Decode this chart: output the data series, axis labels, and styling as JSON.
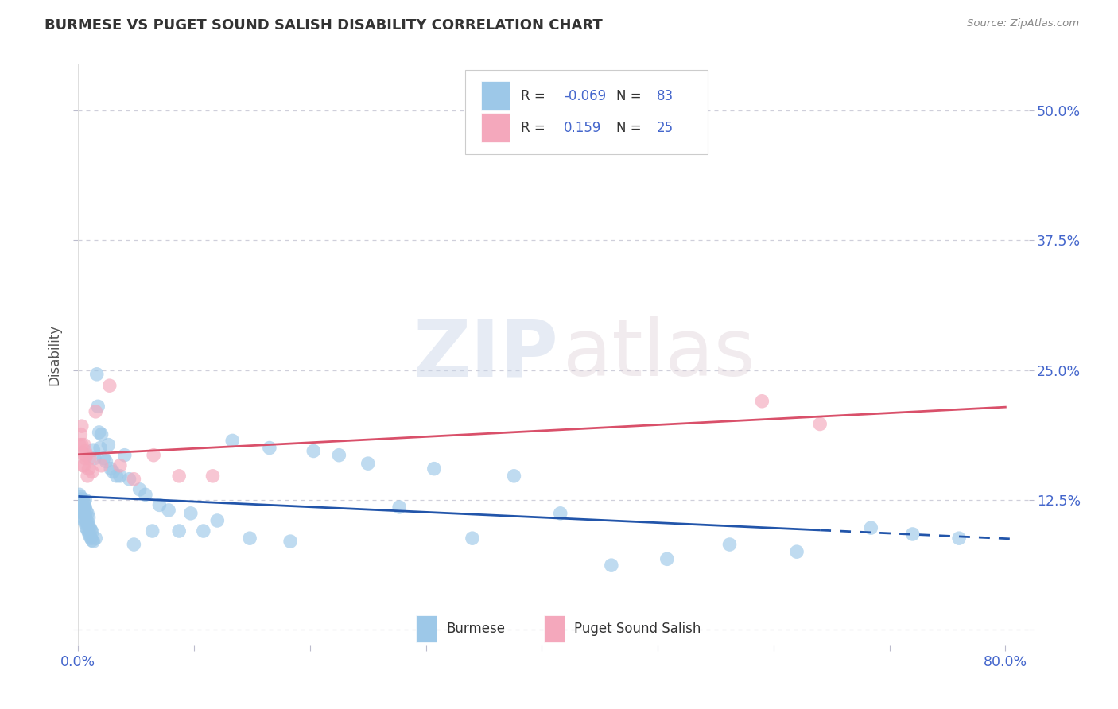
{
  "title": "BURMESE VS PUGET SOUND SALISH DISABILITY CORRELATION CHART",
  "source": "Source: ZipAtlas.com",
  "burmese_color": "#9DC8E8",
  "salish_color": "#F4A8BC",
  "trend_blue": "#2255AA",
  "trend_pink": "#D9506A",
  "burmese_R": -0.069,
  "burmese_N": 83,
  "salish_R": 0.159,
  "salish_N": 25,
  "watermark_zip": "ZIP",
  "watermark_atlas": "atlas",
  "xlim": [
    0.0,
    0.82
  ],
  "ylim": [
    -0.015,
    0.545
  ],
  "yticks": [
    0.0,
    0.125,
    0.25,
    0.375,
    0.5
  ],
  "xticks": [
    0.0,
    0.1,
    0.2,
    0.3,
    0.4,
    0.5,
    0.6,
    0.7,
    0.8
  ],
  "burmese_x": [
    0.001,
    0.001,
    0.002,
    0.002,
    0.002,
    0.003,
    0.003,
    0.003,
    0.003,
    0.004,
    0.004,
    0.004,
    0.004,
    0.005,
    0.005,
    0.005,
    0.005,
    0.006,
    0.006,
    0.006,
    0.006,
    0.007,
    0.007,
    0.007,
    0.008,
    0.008,
    0.008,
    0.009,
    0.009,
    0.009,
    0.01,
    0.01,
    0.011,
    0.011,
    0.012,
    0.012,
    0.013,
    0.013,
    0.014,
    0.015,
    0.016,
    0.017,
    0.018,
    0.019,
    0.02,
    0.022,
    0.024,
    0.026,
    0.028,
    0.03,
    0.033,
    0.036,
    0.04,
    0.044,
    0.048,
    0.053,
    0.058,
    0.064,
    0.07,
    0.078,
    0.087,
    0.097,
    0.108,
    0.12,
    0.133,
    0.148,
    0.165,
    0.183,
    0.203,
    0.225,
    0.25,
    0.277,
    0.307,
    0.34,
    0.376,
    0.416,
    0.46,
    0.508,
    0.562,
    0.62,
    0.684,
    0.72,
    0.76
  ],
  "burmese_y": [
    0.13,
    0.125,
    0.122,
    0.118,
    0.128,
    0.115,
    0.122,
    0.118,
    0.126,
    0.112,
    0.119,
    0.125,
    0.108,
    0.115,
    0.122,
    0.105,
    0.118,
    0.102,
    0.11,
    0.118,
    0.125,
    0.098,
    0.106,
    0.114,
    0.096,
    0.104,
    0.112,
    0.093,
    0.1,
    0.108,
    0.09,
    0.098,
    0.088,
    0.096,
    0.086,
    0.094,
    0.085,
    0.173,
    0.165,
    0.088,
    0.246,
    0.215,
    0.19,
    0.175,
    0.188,
    0.165,
    0.162,
    0.178,
    0.155,
    0.152,
    0.148,
    0.148,
    0.168,
    0.145,
    0.082,
    0.135,
    0.13,
    0.095,
    0.12,
    0.115,
    0.095,
    0.112,
    0.095,
    0.105,
    0.182,
    0.088,
    0.175,
    0.085,
    0.172,
    0.168,
    0.16,
    0.118,
    0.155,
    0.088,
    0.148,
    0.112,
    0.062,
    0.068,
    0.082,
    0.075,
    0.098,
    0.092,
    0.088
  ],
  "salish_x": [
    0.001,
    0.002,
    0.003,
    0.003,
    0.004,
    0.004,
    0.005,
    0.005,
    0.006,
    0.006,
    0.007,
    0.008,
    0.009,
    0.01,
    0.012,
    0.015,
    0.02,
    0.027,
    0.036,
    0.048,
    0.065,
    0.087,
    0.116,
    0.59,
    0.64
  ],
  "salish_y": [
    0.178,
    0.188,
    0.196,
    0.178,
    0.158,
    0.17,
    0.178,
    0.158,
    0.172,
    0.165,
    0.168,
    0.148,
    0.155,
    0.165,
    0.152,
    0.21,
    0.158,
    0.235,
    0.158,
    0.145,
    0.168,
    0.148,
    0.148,
    0.22,
    0.198
  ]
}
